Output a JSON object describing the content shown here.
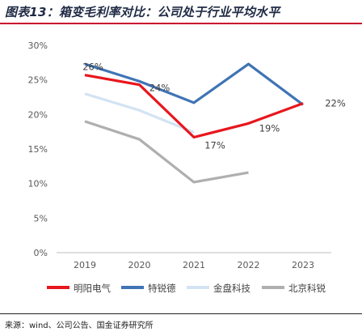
{
  "title": "图表13：箱变毛利率对比：公司处于行业平均水平",
  "source": "来源：wind、公司公告、国金证券研究所",
  "chart_data": {
    "type": "line",
    "title": "图表13：箱变毛利率对比：公司处于行业平均水平",
    "xlabel": "",
    "ylabel": "",
    "categories": [
      "2019",
      "2020",
      "2021",
      "2022",
      "2023"
    ],
    "ylim": [
      0,
      30
    ],
    "yticks": [
      "0%",
      "5%",
      "10%",
      "15%",
      "20%",
      "25%",
      "30%"
    ],
    "grid": false,
    "legend_position": "bottom",
    "series": [
      {
        "name": "明阳电气",
        "color": "#e8161d",
        "values": [
          25.7,
          24.3,
          16.7,
          18.7,
          21.6
        ],
        "labels": [
          "26%",
          "24%",
          "17%",
          "19%",
          "22%"
        ]
      },
      {
        "name": "特锐德",
        "color": "#3f74b5",
        "values": [
          27.3,
          24.8,
          21.7,
          27.3,
          21.4
        ]
      },
      {
        "name": "金盘科技",
        "color": "#d3e3f3",
        "values": [
          23.0,
          20.6,
          17.4,
          null,
          null
        ]
      },
      {
        "name": "北京科锐",
        "color": "#afafaf",
        "values": [
          19.0,
          16.4,
          10.2,
          11.6,
          null
        ]
      }
    ]
  }
}
